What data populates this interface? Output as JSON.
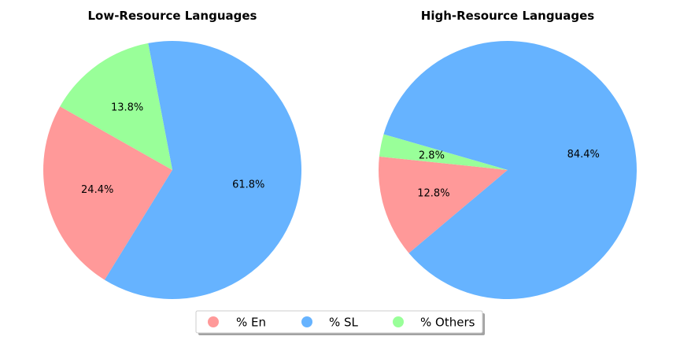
{
  "chart_data": [
    {
      "type": "pie",
      "title": "Low-Resource Languages",
      "categories": [
        "% En",
        "% SL",
        "% Others"
      ],
      "values": [
        24.4,
        61.8,
        13.8
      ],
      "labels": [
        "24.4%",
        "61.8%",
        "13.8%"
      ],
      "colors": [
        "#ff9999",
        "#66b3ff",
        "#99ff99"
      ]
    },
    {
      "type": "pie",
      "title": "High-Resource Languages",
      "categories": [
        "% En",
        "% SL",
        "% Others"
      ],
      "values": [
        12.8,
        84.4,
        2.8
      ],
      "labels": [
        "12.8%",
        "84.4%",
        "2.8%"
      ],
      "colors": [
        "#ff9999",
        "#66b3ff",
        "#99ff99"
      ]
    }
  ],
  "legend": {
    "position": "bottom-center",
    "items": [
      {
        "label": "% En",
        "color": "#ff9999"
      },
      {
        "label": "% SL",
        "color": "#66b3ff"
      },
      {
        "label": "% Others",
        "color": "#99ff99"
      }
    ]
  }
}
